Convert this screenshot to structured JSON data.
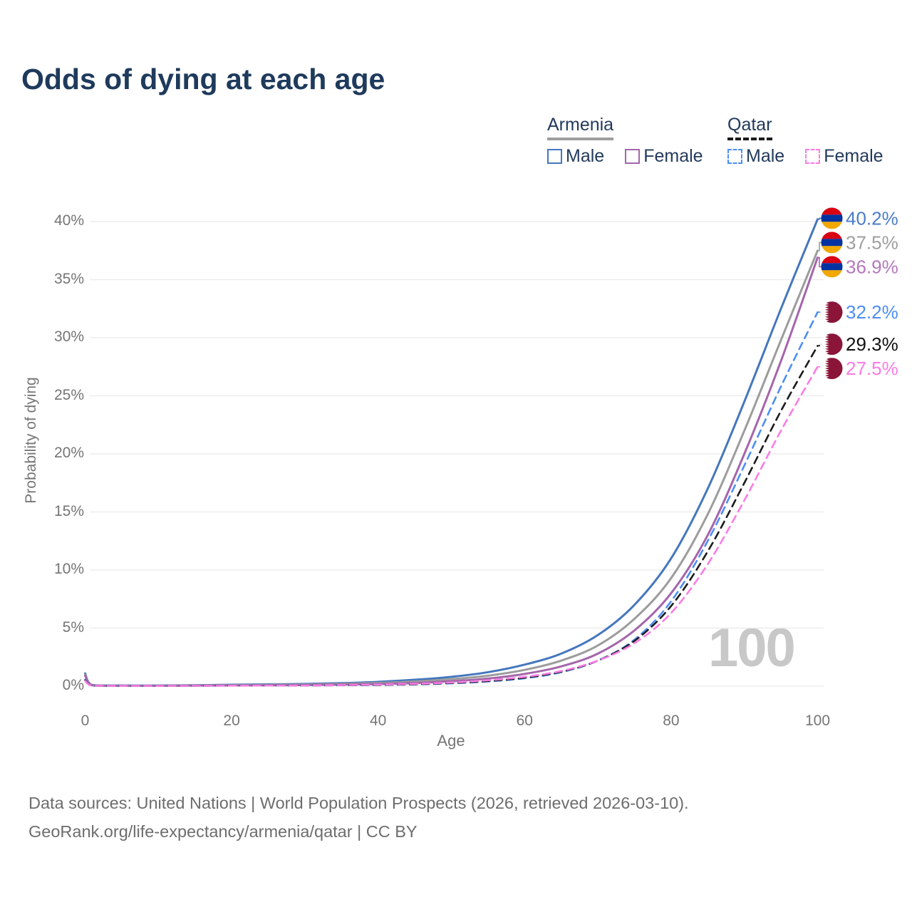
{
  "title": "Odds of dying at each age",
  "watermark": "100",
  "footer": {
    "line1": "Data sources: United Nations | World Population Prospects (2026, retrieved 2026-03-10).",
    "line2": "GeoRank.org/life-expectancy/armenia/qatar | CC BY"
  },
  "legend": {
    "groups": [
      {
        "label": "Armenia",
        "line_style": "solid",
        "underline_color": "#9e9e9e",
        "items": [
          {
            "label": "Male",
            "color": "#4577bd",
            "dashed": false
          },
          {
            "label": "Female",
            "color": "#a466aa",
            "dashed": false
          }
        ]
      },
      {
        "label": "Qatar",
        "line_style": "dashed",
        "underline_color": "#1b1b1b",
        "items": [
          {
            "label": "Male",
            "color": "#4d8ef5",
            "dashed": true
          },
          {
            "label": "Female",
            "color": "#fb7ce4",
            "dashed": true
          }
        ]
      }
    ]
  },
  "chart_data": {
    "type": "line",
    "title": "Odds of dying at each age",
    "xlabel": "Age",
    "ylabel": "Probability of dying",
    "xlim": [
      0,
      100
    ],
    "ylim": [
      0,
      40
    ],
    "x_ticks": [
      0,
      20,
      40,
      60,
      80,
      100
    ],
    "y_ticks": [
      {
        "label": "0%",
        "value": 0
      },
      {
        "label": "5%",
        "value": 5
      },
      {
        "label": "10%",
        "value": 10
      },
      {
        "label": "15%",
        "value": 15
      },
      {
        "label": "20%",
        "value": 20
      },
      {
        "label": "25%",
        "value": 25
      },
      {
        "label": "30%",
        "value": 30
      },
      {
        "label": "35%",
        "value": 35
      },
      {
        "label": "40%",
        "value": 40
      }
    ],
    "grid": true,
    "legend_position": "top-right",
    "x": [
      0,
      1,
      5,
      10,
      15,
      20,
      25,
      30,
      35,
      40,
      45,
      50,
      55,
      60,
      65,
      70,
      75,
      80,
      85,
      90,
      95,
      100
    ],
    "series": [
      {
        "id": "armenia-male",
        "country": "Armenia",
        "sex": "Male",
        "style": "solid",
        "color": "#4577bd",
        "label_color": "#4a7cc9",
        "flag": "armenia",
        "end_label": "40.2%",
        "end_value": 40.2,
        "values": [
          1.1,
          0.09,
          0.05,
          0.05,
          0.08,
          0.12,
          0.15,
          0.19,
          0.26,
          0.37,
          0.55,
          0.8,
          1.2,
          1.85,
          2.8,
          4.4,
          7.0,
          11.0,
          17.0,
          24.5,
          32.5,
          40.2
        ]
      },
      {
        "id": "armenia-both",
        "country": "Armenia",
        "sex": "Both sexes",
        "style": "solid",
        "color": "#9c9c9c",
        "label_color": "#9e9e9e",
        "flag": "armenia",
        "end_label": "37.5%",
        "end_value": 37.5,
        "values": [
          1.0,
          0.08,
          0.04,
          0.04,
          0.06,
          0.09,
          0.11,
          0.14,
          0.19,
          0.27,
          0.4,
          0.6,
          0.9,
          1.4,
          2.2,
          3.5,
          5.8,
          9.3,
          14.8,
          22.0,
          29.8,
          37.5
        ]
      },
      {
        "id": "armenia-female",
        "country": "Armenia",
        "sex": "Female",
        "style": "solid",
        "color": "#a466aa",
        "label_color": "#b478bc",
        "flag": "armenia",
        "end_label": "36.9%",
        "end_value": 36.9,
        "values": [
          0.9,
          0.07,
          0.03,
          0.03,
          0.05,
          0.06,
          0.07,
          0.09,
          0.13,
          0.18,
          0.27,
          0.42,
          0.65,
          1.05,
          1.7,
          2.8,
          4.8,
          8.0,
          13.0,
          20.0,
          28.0,
          36.9
        ]
      },
      {
        "id": "qatar-male",
        "country": "Qatar",
        "sex": "Male",
        "style": "dashed",
        "color": "#4d8ef5",
        "label_color": "#4d8ef5",
        "flag": "qatar",
        "end_label": "32.2%",
        "end_value": 32.2,
        "values": [
          0.55,
          0.05,
          0.02,
          0.02,
          0.04,
          0.06,
          0.06,
          0.07,
          0.08,
          0.1,
          0.15,
          0.24,
          0.4,
          0.68,
          1.2,
          2.2,
          4.0,
          7.3,
          12.5,
          19.0,
          25.8,
          32.2
        ]
      },
      {
        "id": "qatar-both",
        "country": "Qatar",
        "sex": "Both sexes",
        "style": "dashed",
        "color": "#1c1c1c",
        "label_color": "#111111",
        "flag": "qatar",
        "end_label": "29.3%",
        "end_value": 29.3,
        "values": [
          0.5,
          0.04,
          0.02,
          0.02,
          0.03,
          0.05,
          0.05,
          0.06,
          0.08,
          0.11,
          0.17,
          0.27,
          0.44,
          0.73,
          1.25,
          2.2,
          3.9,
          6.9,
          11.6,
          17.5,
          23.7,
          29.3
        ]
      },
      {
        "id": "qatar-female",
        "country": "Qatar",
        "sex": "Female",
        "style": "dashed",
        "color": "#fb7ce4",
        "label_color": "#fb7ce4",
        "flag": "qatar",
        "end_label": "27.5%",
        "end_value": 27.5,
        "values": [
          0.45,
          0.04,
          0.02,
          0.02,
          0.03,
          0.04,
          0.05,
          0.06,
          0.09,
          0.13,
          0.2,
          0.31,
          0.5,
          0.8,
          1.3,
          2.2,
          3.7,
          6.3,
          10.5,
          16.0,
          22.0,
          27.5
        ]
      }
    ],
    "flag_colors": {
      "armenia": [
        "#D90012",
        "#0033A0",
        "#F2A800"
      ],
      "qatar": {
        "maroon": "#8A1538",
        "white": "#FFFFFF"
      }
    },
    "grid_color": "#ebebeb"
  }
}
